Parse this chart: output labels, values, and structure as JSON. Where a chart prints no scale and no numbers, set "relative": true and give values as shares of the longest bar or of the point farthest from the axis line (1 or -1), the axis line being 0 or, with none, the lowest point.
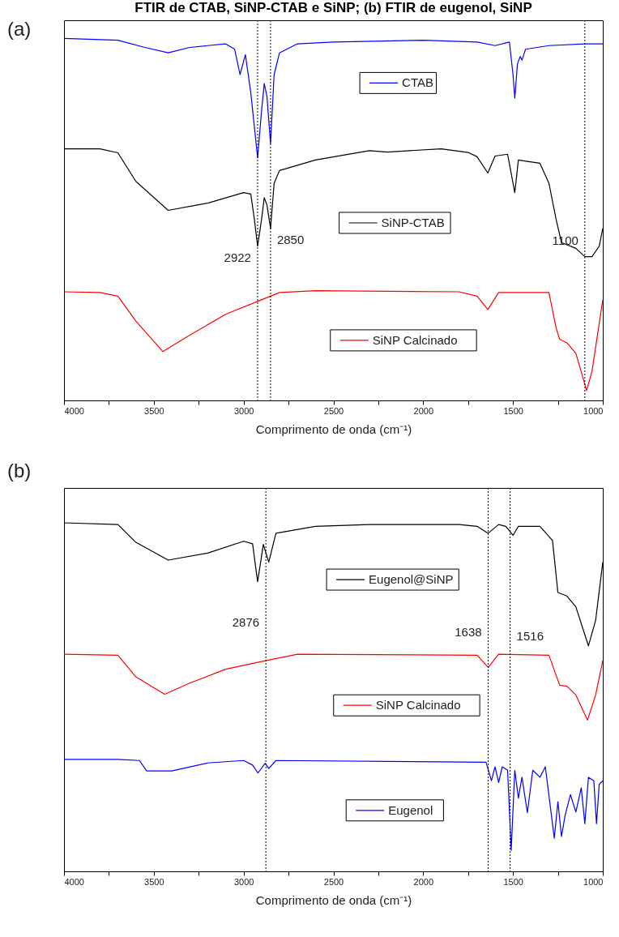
{
  "chart_data": [
    {
      "type": "line",
      "title": "FTIR de CTAB, SiNP-CTAB e SiNP; (b) FTIR de eugenol, SiNP",
      "annotations": [
        "(a)"
      ],
      "xlabel": "Comprimento de onda (cm⁻¹)",
      "relative": true,
      "xlim": [
        4000,
        1000
      ],
      "xticks": [
        4000,
        {
          "value": 3750,
          "label": null
        },
        3500,
        {
          "value": 3250,
          "label": null
        },
        3000,
        {
          "value": 2750,
          "label": null
        },
        2500,
        {
          "value": 2250,
          "label": null
        },
        2000,
        {
          "value": 1750,
          "label": null
        },
        1500,
        {
          "value": 1250,
          "label": null
        },
        1000
      ],
      "series": [
        {
          "name": "CTAB",
          "color": "#0000ff",
          "x": [
            4000,
            3700,
            3550,
            3420,
            3300,
            3100,
            3050,
            3020,
            2990,
            2960,
            2922,
            2900,
            2885,
            2870,
            2850,
            2830,
            2800,
            2700,
            2500,
            2000,
            1700,
            1600,
            1520,
            1500,
            1490,
            1475,
            1460,
            1450,
            1430,
            1300,
            1100,
            1000
          ],
          "values": [
            1.0,
            0.995,
            0.975,
            0.96,
            0.975,
            0.985,
            0.97,
            0.9,
            0.955,
            0.85,
            0.67,
            0.8,
            0.875,
            0.84,
            0.71,
            0.9,
            0.96,
            0.985,
            0.99,
            0.995,
            0.99,
            0.98,
            0.99,
            0.9,
            0.835,
            0.93,
            0.95,
            0.94,
            0.97,
            0.98,
            0.985,
            0.985
          ]
        },
        {
          "name": "SiNP-CTAB",
          "color": "#000000",
          "x": [
            4000,
            3800,
            3700,
            3600,
            3420,
            3200,
            3000,
            2960,
            2940,
            2922,
            2900,
            2885,
            2870,
            2850,
            2830,
            2800,
            2600,
            2300,
            2200,
            1900,
            1750,
            1700,
            1640,
            1600,
            1530,
            1490,
            1470,
            1420,
            1350,
            1300,
            1260,
            1230,
            1150,
            1100,
            1060,
            1020,
            1000
          ],
          "values": [
            0.695,
            0.695,
            0.684,
            0.605,
            0.525,
            0.545,
            0.574,
            0.57,
            0.5,
            0.426,
            0.5,
            0.56,
            0.54,
            0.475,
            0.6,
            0.635,
            0.664,
            0.69,
            0.686,
            0.695,
            0.685,
            0.673,
            0.628,
            0.675,
            0.68,
            0.574,
            0.664,
            0.66,
            0.655,
            0.6,
            0.5,
            0.436,
            0.42,
            0.397,
            0.397,
            0.426,
            0.475
          ]
        },
        {
          "name": "SiNP Calcinado",
          "color": "#ff0000",
          "x": [
            4000,
            3800,
            3700,
            3600,
            3450,
            3300,
            3100,
            2900,
            2800,
            2600,
            1800,
            1700,
            1640,
            1580,
            1300,
            1260,
            1240,
            1200,
            1150,
            1090,
            1060,
            1000
          ],
          "values": [
            0.3,
            0.298,
            0.288,
            0.219,
            0.135,
            0.18,
            0.238,
            0.278,
            0.298,
            0.303,
            0.3,
            0.288,
            0.251,
            0.298,
            0.298,
            0.2,
            0.169,
            0.159,
            0.13,
            0.027,
            0.081,
            0.278
          ]
        }
      ],
      "ref_lines": [
        {
          "axis": "x",
          "value": 2922,
          "label": "2922",
          "color": "#000000",
          "line_style": "dotted"
        },
        {
          "axis": "x",
          "value": 2850,
          "label": "2850",
          "color": "#000000",
          "line_style": "dotted"
        },
        {
          "axis": "x",
          "value": 1100,
          "label": "1100",
          "color": "#000000",
          "line_style": "dotted"
        }
      ],
      "legend": "right"
    },
    {
      "type": "line",
      "annotations": [
        "(b)"
      ],
      "xlabel": "Comprimento de onda (cm⁻¹)",
      "relative": true,
      "xlim": [
        4000,
        1000
      ],
      "xticks": [
        4000,
        {
          "value": 3750,
          "label": null
        },
        3500,
        {
          "value": 3250,
          "label": null
        },
        3000,
        {
          "value": 2750,
          "label": null
        },
        2500,
        {
          "value": 2250,
          "label": null
        },
        2000,
        {
          "value": 1750,
          "label": null
        },
        1500,
        {
          "value": 1250,
          "label": null
        },
        1000
      ],
      "series": [
        {
          "name": "Eugenol@SiNP",
          "color": "#000000",
          "x": [
            4000,
            3700,
            3600,
            3420,
            3200,
            3000,
            2950,
            2922,
            2890,
            2860,
            2820,
            2600,
            2300,
            1800,
            1700,
            1638,
            1580,
            1540,
            1500,
            1470,
            1350,
            1280,
            1250,
            1200,
            1150,
            1080,
            1040,
            1000
          ],
          "values": [
            1.0,
            0.995,
            0.944,
            0.893,
            0.913,
            0.947,
            0.94,
            0.831,
            0.938,
            0.887,
            0.97,
            0.99,
            0.995,
            0.995,
            0.99,
            0.97,
            0.995,
            0.99,
            0.964,
            0.99,
            0.99,
            0.949,
            0.8,
            0.79,
            0.759,
            0.647,
            0.72,
            0.887
          ]
        },
        {
          "name": "SiNP Calcinado",
          "color": "#ff0000",
          "x": [
            4000,
            3700,
            3600,
            3440,
            3300,
            3100,
            2900,
            2700,
            1700,
            1638,
            1580,
            1300,
            1240,
            1200,
            1150,
            1085,
            1040,
            1000
          ],
          "values": [
            0.623,
            0.62,
            0.558,
            0.508,
            0.54,
            0.58,
            0.602,
            0.623,
            0.62,
            0.585,
            0.623,
            0.62,
            0.534,
            0.531,
            0.506,
            0.434,
            0.506,
            0.605
          ]
        },
        {
          "name": "Eugenol",
          "color": "#0000ff",
          "x": [
            4000,
            3700,
            3580,
            3540,
            3400,
            3200,
            3000,
            2950,
            2920,
            2880,
            2860,
            2820,
            1650,
            1620,
            1600,
            1580,
            1560,
            1530,
            1510,
            1490,
            1470,
            1450,
            1420,
            1390,
            1350,
            1320,
            1270,
            1250,
            1230,
            1210,
            1180,
            1150,
            1120,
            1100,
            1080,
            1050,
            1035,
            1020,
            1000
          ],
          "values": [
            0.321,
            0.321,
            0.318,
            0.288,
            0.288,
            0.311,
            0.318,
            0.305,
            0.282,
            0.31,
            0.295,
            0.318,
            0.313,
            0.26,
            0.3,
            0.255,
            0.3,
            0.29,
            0.06,
            0.29,
            0.21,
            0.27,
            0.168,
            0.29,
            0.27,
            0.3,
            0.095,
            0.2,
            0.1,
            0.16,
            0.22,
            0.17,
            0.24,
            0.137,
            0.27,
            0.26,
            0.137,
            0.25,
            0.26
          ]
        }
      ],
      "ref_lines": [
        {
          "axis": "x",
          "value": 2876,
          "label": "2876",
          "color": "#000000",
          "line_style": "dotted"
        },
        {
          "axis": "x",
          "value": 1638,
          "label": "1638",
          "color": "#000000",
          "line_style": "dotted"
        },
        {
          "axis": "x",
          "value": 1516,
          "label": "1516",
          "color": "#000000",
          "line_style": "dotted"
        }
      ],
      "legend": "right"
    }
  ]
}
